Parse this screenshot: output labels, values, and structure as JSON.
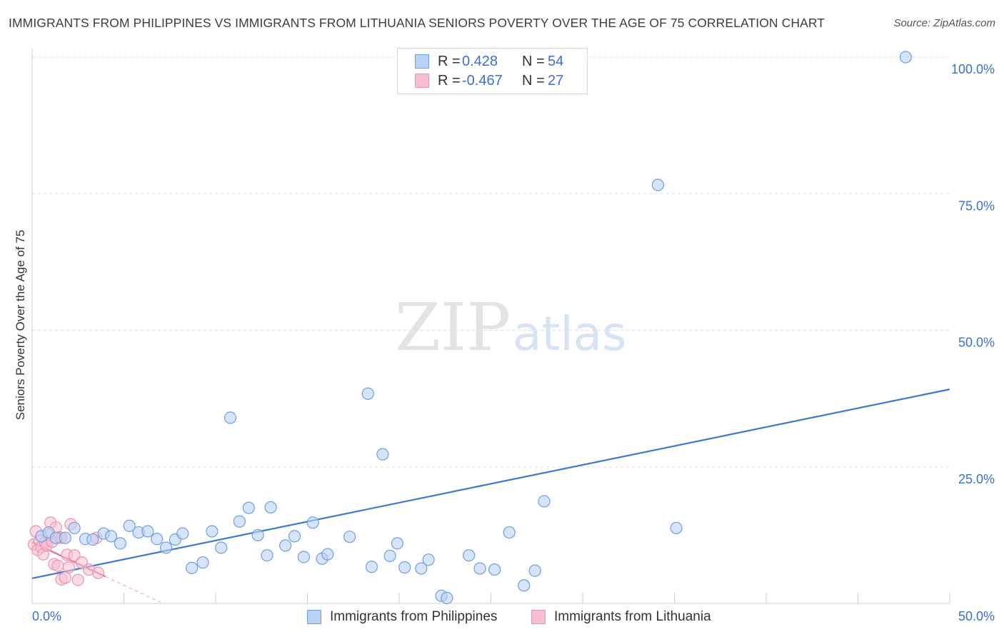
{
  "title": "IMMIGRANTS FROM PHILIPPINES VS IMMIGRANTS FROM LITHUANIA SENIORS POVERTY OVER THE AGE OF 75 CORRELATION CHART",
  "source": "Source: ZipAtlas.com",
  "watermark": {
    "zip": "ZIP",
    "atlas": "atlas"
  },
  "colors": {
    "blue": "#3a78d8",
    "blue_fill": "#b9d2f3",
    "pink": "#e0709a",
    "pink_fill": "#f7bdd0",
    "grid": "#dddddd",
    "tick_text": "#3a6fd8"
  },
  "legend": {
    "rows": [
      {
        "r_label": "R =",
        "r_value": "0.428",
        "n_label": "N =",
        "n_value": "54"
      },
      {
        "r_label": "R =",
        "r_value": "-0.467",
        "n_label": "N =",
        "n_value": "27"
      }
    ]
  },
  "bottom_legend": {
    "series1": "Immigrants from Philippines",
    "series2": "Immigrants from Lithuania"
  },
  "chart_data": {
    "type": "scatter",
    "title": "IMMIGRANTS FROM PHILIPPINES VS IMMIGRANTS FROM LITHUANIA SENIORS POVERTY OVER THE AGE OF 75 CORRELATION CHART",
    "xlabel": "",
    "ylabel": "Seniors Poverty Over the Age of 75",
    "xlim": [
      0,
      50
    ],
    "ylim": [
      0,
      100
    ],
    "x_tick_labels": [
      "0.0%",
      "50.0%"
    ],
    "y_tick_labels": [
      "100.0%",
      "75.0%",
      "50.0%",
      "25.0%"
    ],
    "y_ticks": [
      100,
      75,
      50,
      25
    ],
    "series": [
      {
        "name": "Immigrants from Philippines",
        "R": 0.428,
        "N": 54,
        "points": [
          [
            0.5,
            12.3
          ],
          [
            0.9,
            13.0
          ],
          [
            1.3,
            12.0
          ],
          [
            1.8,
            12.0
          ],
          [
            2.3,
            13.8
          ],
          [
            2.9,
            11.8
          ],
          [
            3.3,
            11.7
          ],
          [
            3.9,
            12.8
          ],
          [
            4.3,
            12.3
          ],
          [
            4.8,
            11.0
          ],
          [
            5.3,
            14.2
          ],
          [
            5.8,
            13.0
          ],
          [
            6.3,
            13.2
          ],
          [
            6.8,
            11.8
          ],
          [
            7.3,
            10.2
          ],
          [
            7.8,
            11.7
          ],
          [
            8.2,
            12.8
          ],
          [
            8.7,
            6.5
          ],
          [
            9.3,
            7.5
          ],
          [
            9.8,
            13.2
          ],
          [
            10.3,
            10.2
          ],
          [
            10.8,
            34.0
          ],
          [
            11.3,
            15.0
          ],
          [
            11.8,
            17.5
          ],
          [
            12.3,
            12.5
          ],
          [
            12.8,
            8.8
          ],
          [
            13.0,
            17.6
          ],
          [
            13.8,
            10.6
          ],
          [
            14.3,
            12.3
          ],
          [
            14.8,
            8.5
          ],
          [
            15.3,
            14.8
          ],
          [
            15.8,
            8.2
          ],
          [
            16.1,
            9.0
          ],
          [
            17.3,
            12.2
          ],
          [
            18.3,
            38.4
          ],
          [
            18.5,
            6.7
          ],
          [
            19.1,
            27.3
          ],
          [
            19.5,
            8.7
          ],
          [
            19.9,
            11.0
          ],
          [
            20.3,
            6.6
          ],
          [
            21.2,
            6.4
          ],
          [
            21.6,
            8.0
          ],
          [
            22.3,
            1.4
          ],
          [
            22.6,
            1.0
          ],
          [
            23.8,
            8.8
          ],
          [
            24.4,
            6.4
          ],
          [
            25.2,
            6.2
          ],
          [
            26.0,
            13.0
          ],
          [
            26.8,
            3.3
          ],
          [
            27.4,
            6.0
          ],
          [
            27.9,
            18.7
          ],
          [
            34.1,
            76.6
          ],
          [
            35.1,
            13.8
          ],
          [
            47.6,
            100.0
          ]
        ],
        "trendline": {
          "x": [
            0,
            50
          ],
          "y": [
            4.6,
            39.2
          ]
        }
      },
      {
        "name": "Immigrants from Lithuania",
        "R": -0.467,
        "N": 27,
        "points": [
          [
            0.1,
            10.8
          ],
          [
            0.2,
            13.2
          ],
          [
            0.3,
            9.8
          ],
          [
            0.4,
            11.5
          ],
          [
            0.5,
            10.3
          ],
          [
            0.6,
            9.0
          ],
          [
            0.7,
            11.2
          ],
          [
            0.8,
            10.6
          ],
          [
            0.9,
            12.6
          ],
          [
            1.0,
            14.8
          ],
          [
            1.1,
            11.3
          ],
          [
            1.2,
            7.2
          ],
          [
            1.3,
            13.9
          ],
          [
            1.4,
            6.9
          ],
          [
            1.5,
            12.1
          ],
          [
            1.6,
            12.0
          ],
          [
            1.6,
            4.4
          ],
          [
            1.8,
            4.7
          ],
          [
            1.9,
            8.9
          ],
          [
            2.0,
            6.6
          ],
          [
            2.1,
            14.5
          ],
          [
            2.3,
            8.8
          ],
          [
            2.5,
            4.3
          ],
          [
            2.7,
            7.5
          ],
          [
            3.1,
            6.2
          ],
          [
            3.5,
            12.0
          ],
          [
            3.6,
            5.6
          ]
        ],
        "trendline": {
          "x": [
            0,
            4.0
          ],
          "y": [
            11.2,
            4.9
          ]
        },
        "trendline_extension": {
          "x": [
            4.0,
            7.0
          ],
          "y": [
            4.9,
            0.2
          ]
        }
      }
    ]
  }
}
